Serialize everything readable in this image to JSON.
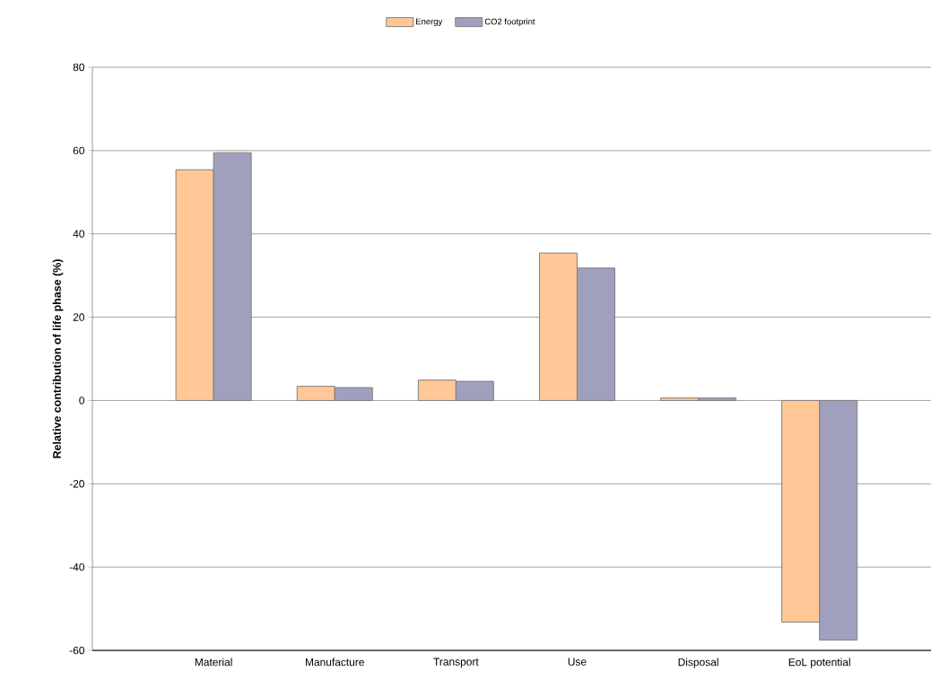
{
  "chart_data": {
    "type": "bar",
    "ylabel": "Relative contribution of life phase (%)",
    "categories": [
      "Material",
      "Manufacture",
      "Transport",
      "Use",
      "Disposal",
      "EoL potential"
    ],
    "series": [
      {
        "name": "Energy",
        "color": "#ffc896",
        "values": [
          55.4,
          3.4,
          4.9,
          35.4,
          0.6,
          -53.2
        ]
      },
      {
        "name": "CO2 footprint",
        "color": "#a0a0be",
        "values": [
          59.5,
          3.1,
          4.6,
          31.8,
          0.6,
          -57.5
        ]
      }
    ],
    "ylim": [
      -60,
      80
    ],
    "yticks": [
      -60,
      -40,
      -20,
      0,
      20,
      40,
      60,
      80
    ],
    "grid": "y",
    "legend": "top"
  }
}
